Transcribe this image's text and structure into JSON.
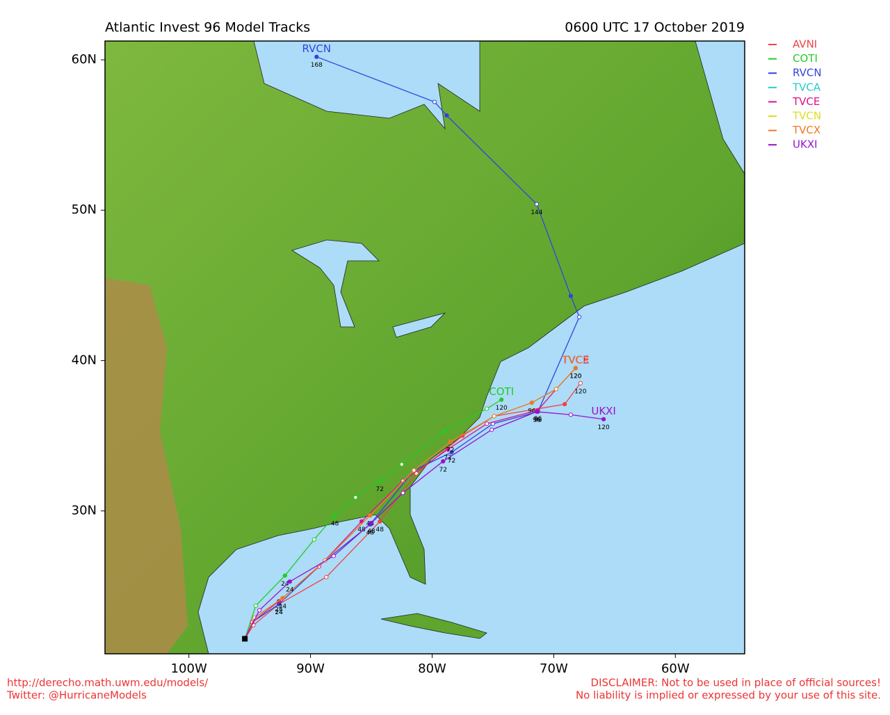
{
  "title": "Atlantic Invest 96 Model Tracks",
  "date": "0600 UTC 17 October 2019",
  "lon_range": [
    -106.9,
    -54.3
  ],
  "lat_range": [
    20.5,
    61.25
  ],
  "lon_ticks": [
    {
      "value": -100,
      "label": "100W"
    },
    {
      "value": -90,
      "label": "90W"
    },
    {
      "value": -80,
      "label": "80W"
    },
    {
      "value": -70,
      "label": "70W"
    },
    {
      "value": -60,
      "label": "60W"
    }
  ],
  "lat_ticks": [
    {
      "value": 30,
      "label": "30N"
    },
    {
      "value": 40,
      "label": "40N"
    },
    {
      "value": 50,
      "label": "50N"
    },
    {
      "value": 60,
      "label": "60N"
    }
  ],
  "tracks": [
    {
      "name": "AVNI",
      "color": "#ee4444",
      "lon": [
        -95.4,
        -94.7,
        -92.6,
        -88.7,
        -84.3,
        -81.3,
        -77.5,
        -74.9,
        -69.1,
        -67.8
      ],
      "lat": [
        21.5,
        22.4,
        23.8,
        25.6,
        29.3,
        32.5,
        35.0,
        36.3,
        37.1,
        38.5
      ],
      "hours": [
        null,
        null,
        "24",
        null,
        "48",
        null,
        null,
        null,
        null,
        "120"
      ]
    },
    {
      "name": "COTI",
      "color": "#22cc22",
      "lon": [
        -95.4,
        -94.5,
        -92.1,
        -89.7,
        -88.0,
        -86.3,
        -84.3,
        -82.5,
        -79.0,
        -75.5,
        -74.3
      ],
      "lat": [
        21.5,
        23.7,
        25.7,
        28.1,
        29.7,
        30.9,
        32.0,
        33.1,
        35.3,
        36.8,
        37.4
      ],
      "hours": [
        null,
        null,
        "24",
        null,
        "48",
        null,
        "72",
        null,
        null,
        null,
        "120"
      ]
    },
    {
      "name": "RVCN",
      "color": "#3344dd",
      "lon": [
        -95.4,
        -94.8,
        -92.6,
        -88.8,
        -85.1,
        -81.5,
        -78.4,
        -75.0,
        -71.3,
        -67.9,
        -68.6,
        -71.4,
        -78.8,
        -79.8,
        -89.5
      ],
      "lat": [
        21.5,
        22.6,
        23.8,
        26.7,
        29.1,
        32.7,
        33.9,
        35.8,
        36.6,
        42.9,
        44.3,
        50.4,
        56.3,
        57.2,
        60.2
      ],
      "hours": [
        null,
        null,
        "24",
        null,
        "48",
        null,
        "72",
        null,
        "96",
        null,
        null,
        "144",
        null,
        null,
        "168"
      ]
    },
    {
      "name": "TVCA",
      "color": "#22cccc",
      "lon": [
        -95.4,
        -94.6,
        -92.3,
        -88.8,
        -85.1,
        -81.5,
        -78.5,
        -74.9,
        -71.8,
        -69.8,
        -68.2
      ],
      "lat": [
        21.5,
        22.9,
        24.2,
        26.7,
        29.7,
        32.7,
        34.6,
        36.3,
        37.2,
        38.1,
        39.5
      ],
      "hours": [
        null,
        null,
        null,
        null,
        null,
        null,
        null,
        null,
        null,
        null,
        null
      ]
    },
    {
      "name": "TVCE",
      "color": "#dd1188",
      "lon": [
        -95.4,
        -94.8,
        -92.6,
        -89.3,
        -85.8,
        -82.4,
        -78.7,
        -75.5,
        -71.3,
        -69.8,
        -68.2
      ],
      "lat": [
        21.5,
        22.6,
        24.0,
        26.3,
        29.3,
        32.0,
        34.1,
        35.8,
        36.7,
        38.1,
        39.5
      ],
      "hours": [
        null,
        null,
        "24",
        null,
        "48",
        null,
        "72",
        null,
        "96",
        null,
        "120"
      ]
    },
    {
      "name": "TVCN",
      "color": "#dddd22",
      "lon": [
        -95.4,
        -94.6,
        -92.3,
        -88.8,
        -85.1,
        -81.5,
        -78.5,
        -74.9,
        -71.8,
        -69.8,
        -68.2
      ],
      "lat": [
        21.5,
        22.9,
        24.2,
        26.7,
        29.7,
        32.7,
        34.6,
        36.3,
        37.2,
        38.1,
        39.5
      ],
      "hours": [
        null,
        null,
        null,
        null,
        null,
        null,
        null,
        null,
        null,
        null,
        null
      ]
    },
    {
      "name": "TVCX",
      "color": "#ee7722",
      "lon": [
        -95.4,
        -94.6,
        -92.3,
        -88.8,
        -85.1,
        -81.5,
        -78.5,
        -74.9,
        -71.8,
        -69.8,
        -68.2
      ],
      "lat": [
        21.5,
        22.9,
        24.2,
        26.7,
        29.7,
        32.7,
        34.6,
        36.3,
        37.2,
        38.1,
        39.5
      ],
      "hours": [
        null,
        null,
        "24",
        null,
        "48",
        null,
        "72",
        null,
        "96",
        null,
        "120"
      ]
    },
    {
      "name": "UKXI",
      "color": "#9911cc",
      "lon": [
        -95.4,
        -94.2,
        -91.7,
        -88.1,
        -85.0,
        -82.4,
        -79.1,
        -75.1,
        -71.4,
        -68.6,
        -65.9
      ],
      "lat": [
        21.5,
        23.4,
        25.3,
        27.0,
        29.2,
        31.2,
        33.3,
        35.4,
        36.6,
        36.4,
        36.1
      ],
      "hours": [
        null,
        null,
        "24",
        null,
        "48",
        null,
        "72",
        null,
        "96",
        null,
        "120"
      ]
    }
  ],
  "end_labels": [
    "COTI",
    "RVCN",
    "TVCE",
    "TVCX",
    "UKXI"
  ],
  "footer_left": [
    "http://derecho.math.uwm.edu/models/",
    "Twitter: @HurricaneModels"
  ],
  "footer_right": [
    "DISCLAIMER: Not to be used in place of official sources!",
    "No liability is implied or expressed by your use of this site."
  ]
}
